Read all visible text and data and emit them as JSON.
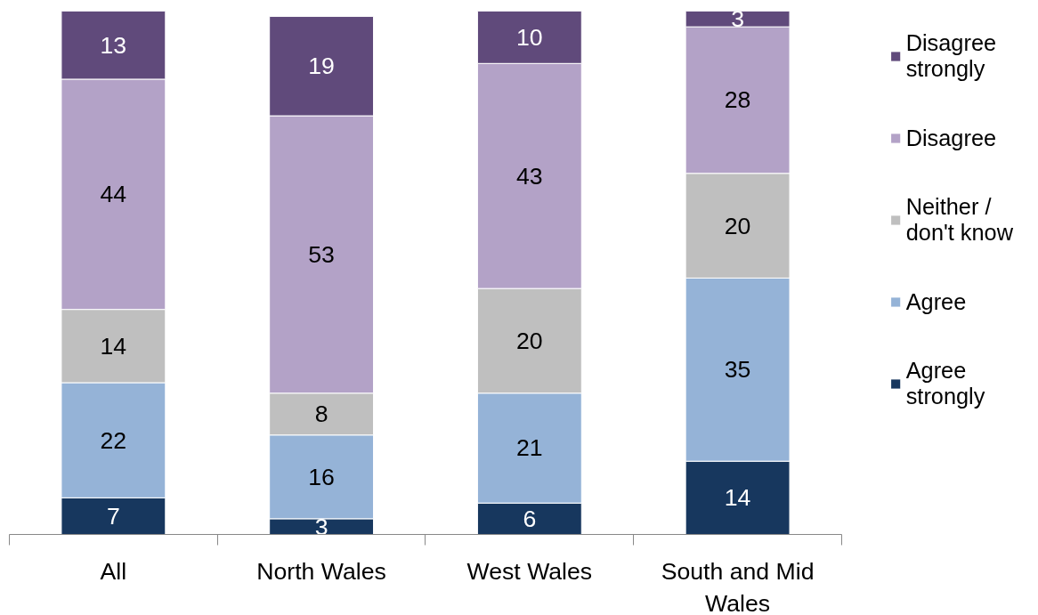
{
  "chart_data": {
    "type": "bar",
    "stacked": true,
    "data_labels": true,
    "legend": "right",
    "grid": false,
    "categories": [
      "All",
      "North Wales",
      "West Wales",
      "South and Mid Wales"
    ],
    "series": [
      {
        "name": "Agree strongly",
        "color": "#17375e",
        "values": [
          7,
          3,
          6,
          14
        ]
      },
      {
        "name": "Agree",
        "color": "#95b3d7",
        "values": [
          22,
          16,
          21,
          35
        ]
      },
      {
        "name": "Neither / don't know",
        "color": "#bfbfbf",
        "values": [
          14,
          8,
          20,
          20
        ]
      },
      {
        "name": "Disagree",
        "color": "#b3a2c7",
        "values": [
          44,
          53,
          43,
          28
        ]
      },
      {
        "name": "Disagree strongly",
        "color": "#604a7b",
        "values": [
          13,
          19,
          10,
          3
        ]
      }
    ]
  }
}
